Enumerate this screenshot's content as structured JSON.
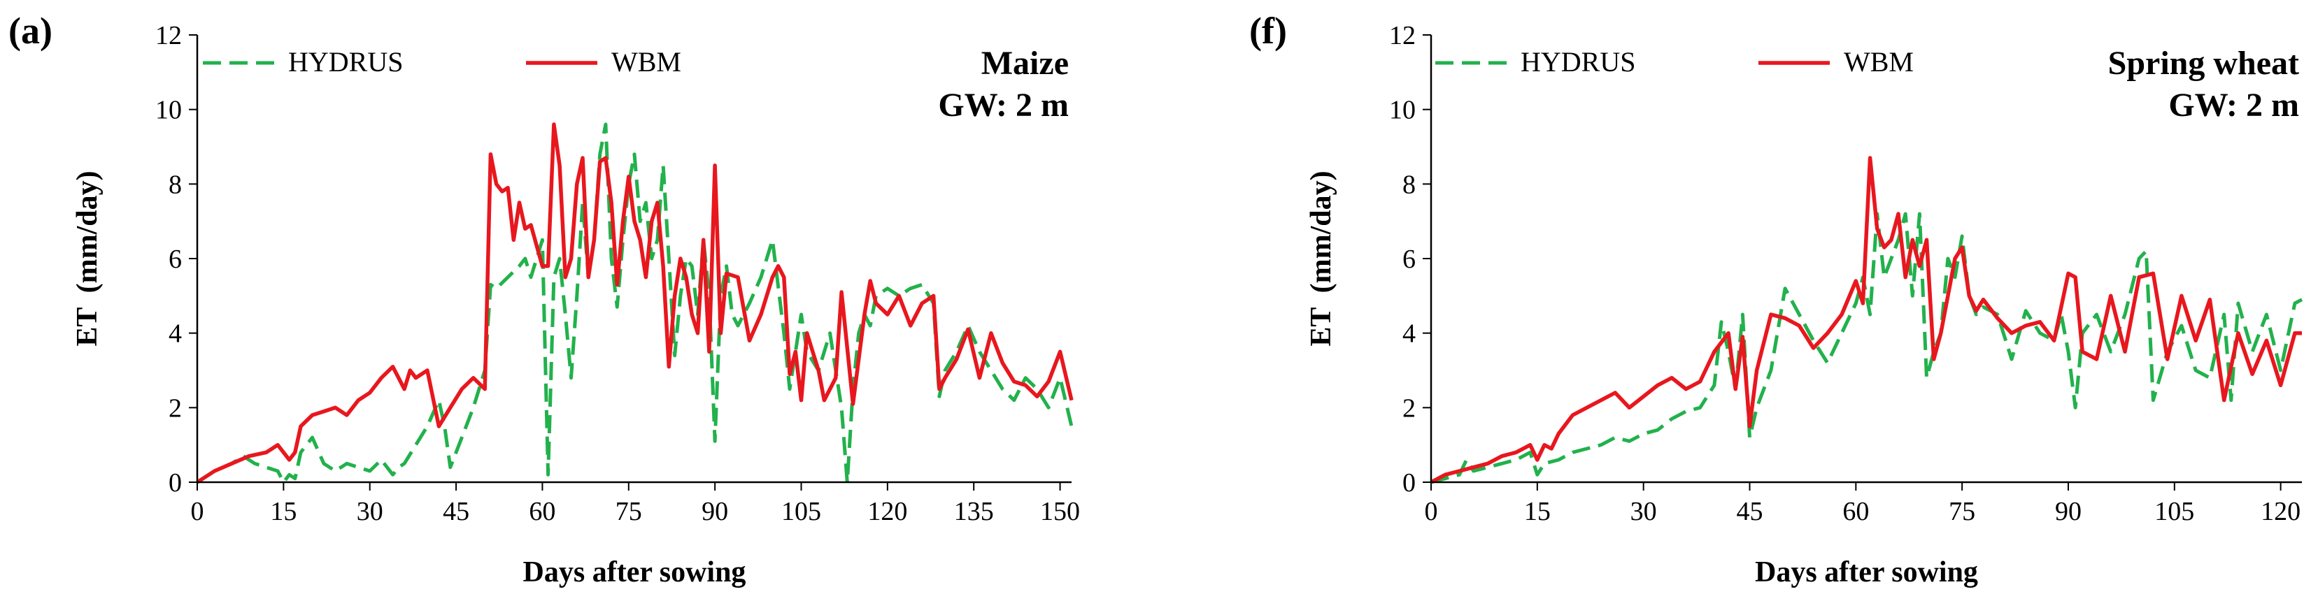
{
  "chart_data": [
    {
      "type": "line",
      "panel_label": "(a)",
      "crop": "Maize",
      "groundwater": "GW: 2 m",
      "xlabel": "Days after sowing",
      "ylabel": "ET  (mm/day)",
      "xlim": [
        0,
        152
      ],
      "ylim": [
        0,
        12
      ],
      "xticks": [
        0,
        15,
        30,
        45,
        60,
        75,
        90,
        105,
        120,
        135,
        150
      ],
      "yticks": [
        0,
        2,
        4,
        6,
        8,
        10,
        12
      ],
      "legend_position": "top-left",
      "series": [
        {
          "name": "HYDRUS",
          "color": "#22b14c",
          "dash": "dashed",
          "x": [
            0,
            3,
            6,
            8,
            10,
            12,
            14,
            15,
            16,
            17,
            18,
            20,
            22,
            24,
            26,
            28,
            30,
            32,
            34,
            35,
            36,
            38,
            40,
            42,
            43,
            44,
            46,
            48,
            50,
            51,
            52,
            54,
            56,
            57,
            58,
            59,
            60,
            61,
            62,
            63,
            64,
            65,
            66,
            67,
            68,
            69,
            70,
            71,
            72,
            73,
            74,
            75,
            76,
            77,
            78,
            79,
            80,
            81,
            82,
            83,
            84,
            85,
            86,
            87,
            88,
            89,
            90,
            91,
            92,
            93,
            94,
            96,
            98,
            100,
            102,
            103,
            104,
            105,
            106,
            108,
            110,
            112,
            113,
            114,
            115,
            116,
            117,
            118,
            120,
            122,
            124,
            126,
            128,
            129,
            130,
            132,
            134,
            136,
            138,
            140,
            142,
            144,
            146,
            148,
            150,
            152
          ],
          "y": [
            0,
            0.3,
            0.5,
            0.7,
            0.5,
            0.4,
            0.3,
            0,
            0.2,
            0.1,
            0.8,
            1.2,
            0.5,
            0.3,
            0.5,
            0.4,
            0.3,
            0.6,
            0.2,
            0.4,
            0.5,
            1.0,
            1.5,
            2.2,
            1.5,
            0.4,
            1.2,
            2.0,
            3.0,
            5.3,
            5.2,
            5.5,
            5.8,
            6.0,
            5.5,
            6.0,
            6.5,
            0.2,
            5.5,
            6.0,
            4.5,
            2.8,
            5.0,
            7.5,
            5.5,
            6.5,
            8.8,
            9.6,
            6.0,
            4.7,
            6.5,
            8.0,
            8.8,
            7.0,
            7.5,
            6.0,
            6.5,
            8.5,
            6.0,
            3.4,
            5.0,
            6.0,
            5.8,
            4.5,
            6.5,
            5.0,
            1.1,
            5.0,
            5.8,
            4.5,
            4.2,
            4.8,
            5.5,
            6.5,
            4.0,
            2.5,
            3.5,
            4.5,
            3.5,
            3.0,
            4.0,
            2.0,
            0,
            2.5,
            4.0,
            4.5,
            4.2,
            5.0,
            5.2,
            5.0,
            5.2,
            5.3,
            4.8,
            2.3,
            3.0,
            3.5,
            4.2,
            3.5,
            3.0,
            2.5,
            2.2,
            2.8,
            2.5,
            2.0,
            2.8,
            1.5
          ]
        },
        {
          "name": "WBM",
          "color": "#e8171e",
          "dash": "solid",
          "x": [
            0,
            3,
            6,
            9,
            12,
            14,
            16,
            17,
            18,
            20,
            22,
            24,
            26,
            28,
            30,
            32,
            34,
            36,
            37,
            38,
            40,
            42,
            44,
            46,
            48,
            50,
            51,
            52,
            53,
            54,
            55,
            56,
            57,
            58,
            60,
            61,
            62,
            63,
            64,
            65,
            66,
            67,
            68,
            69,
            70,
            71,
            72,
            73,
            74,
            75,
            76,
            77,
            78,
            79,
            80,
            81,
            82,
            83,
            84,
            85,
            86,
            87,
            88,
            89,
            90,
            91,
            92,
            94,
            96,
            98,
            100,
            101,
            102,
            103,
            104,
            105,
            106,
            107,
            108,
            109,
            110,
            111,
            112,
            114,
            116,
            117,
            118,
            120,
            122,
            124,
            126,
            128,
            129,
            130,
            132,
            134,
            136,
            138,
            140,
            142,
            144,
            146,
            148,
            150,
            152
          ],
          "y": [
            0,
            0.3,
            0.5,
            0.7,
            0.8,
            1.0,
            0.6,
            0.8,
            1.5,
            1.8,
            1.9,
            2.0,
            1.8,
            2.2,
            2.4,
            2.8,
            3.1,
            2.5,
            3.0,
            2.8,
            3.0,
            1.5,
            2.0,
            2.5,
            2.8,
            2.5,
            8.8,
            8.0,
            7.8,
            7.9,
            6.5,
            7.5,
            6.8,
            6.9,
            5.8,
            5.8,
            9.6,
            8.5,
            5.5,
            6.0,
            8.0,
            8.7,
            5.5,
            6.5,
            8.6,
            8.7,
            7.5,
            5.3,
            7.0,
            8.2,
            7.0,
            6.5,
            5.5,
            7.0,
            7.5,
            5.8,
            3.1,
            5.0,
            6.0,
            5.5,
            4.5,
            4.0,
            6.5,
            3.5,
            8.5,
            4.0,
            5.6,
            5.5,
            3.8,
            4.5,
            5.5,
            5.8,
            5.5,
            2.9,
            3.5,
            2.2,
            4.0,
            3.5,
            3.0,
            2.2,
            2.5,
            2.8,
            5.1,
            2.1,
            4.5,
            5.4,
            4.8,
            4.5,
            5.0,
            4.2,
            4.8,
            5.0,
            2.5,
            2.8,
            3.3,
            4.1,
            2.8,
            4.0,
            3.2,
            2.7,
            2.6,
            2.3,
            2.7,
            3.5,
            2.2
          ]
        }
      ]
    },
    {
      "type": "line",
      "panel_label": "(f)",
      "crop": "Spring wheat",
      "groundwater": "GW: 2 m",
      "xlabel": "Days after sowing",
      "ylabel": "ET  (mm/day)",
      "xlim": [
        0,
        123
      ],
      "ylim": [
        0,
        12
      ],
      "xticks": [
        0,
        15,
        30,
        45,
        60,
        75,
        90,
        105,
        120
      ],
      "yticks": [
        0,
        2,
        4,
        6,
        8,
        10,
        12
      ],
      "legend_position": "top-left",
      "series": [
        {
          "name": "HYDRUS",
          "color": "#22b14c",
          "dash": "dashed",
          "x": [
            0,
            2,
            4,
            5,
            6,
            8,
            10,
            12,
            14,
            15,
            16,
            18,
            20,
            22,
            24,
            26,
            28,
            30,
            32,
            34,
            36,
            38,
            40,
            41,
            42,
            43,
            44,
            45,
            46,
            48,
            50,
            52,
            54,
            56,
            58,
            60,
            61,
            62,
            63,
            64,
            65,
            66,
            67,
            68,
            69,
            70,
            71,
            72,
            73,
            74,
            75,
            76,
            77,
            78,
            80,
            82,
            84,
            86,
            88,
            89,
            90,
            91,
            92,
            94,
            96,
            98,
            100,
            101,
            102,
            104,
            106,
            108,
            110,
            112,
            113,
            114,
            116,
            118,
            120,
            122,
            123
          ],
          "y": [
            0,
            0.1,
            0.2,
            0.6,
            0.3,
            0.4,
            0.5,
            0.6,
            0.8,
            0.2,
            0.5,
            0.6,
            0.8,
            0.9,
            1.0,
            1.2,
            1.1,
            1.3,
            1.4,
            1.7,
            1.9,
            2.0,
            2.6,
            4.3,
            3.5,
            2.5,
            4.5,
            1.2,
            2.0,
            3.0,
            5.2,
            4.5,
            3.8,
            3.2,
            4.0,
            4.8,
            5.5,
            4.5,
            7.2,
            5.5,
            6.0,
            6.5,
            7.2,
            5.0,
            7.2,
            2.8,
            3.5,
            4.0,
            6.0,
            5.5,
            6.6,
            5.0,
            4.5,
            4.7,
            4.5,
            3.3,
            4.6,
            4.0,
            3.8,
            4.5,
            3.5,
            2.0,
            4.0,
            4.5,
            3.5,
            4.5,
            6.0,
            6.2,
            2.2,
            3.5,
            4.2,
            3.0,
            2.8,
            4.5,
            2.2,
            4.8,
            3.5,
            4.5,
            3.0,
            4.8,
            4.9
          ]
        },
        {
          "name": "WBM",
          "color": "#e8171e",
          "dash": "solid",
          "x": [
            0,
            2,
            4,
            6,
            8,
            10,
            12,
            14,
            15,
            16,
            17,
            18,
            20,
            22,
            24,
            26,
            28,
            30,
            32,
            34,
            36,
            38,
            40,
            42,
            43,
            44,
            45,
            46,
            48,
            50,
            52,
            54,
            56,
            58,
            60,
            61,
            62,
            63,
            64,
            65,
            66,
            67,
            68,
            69,
            70,
            71,
            72,
            74,
            75,
            76,
            77,
            78,
            80,
            82,
            84,
            86,
            88,
            90,
            91,
            92,
            94,
            96,
            98,
            100,
            102,
            104,
            106,
            108,
            110,
            112,
            114,
            116,
            118,
            120,
            122,
            123
          ],
          "y": [
            0,
            0.2,
            0.3,
            0.4,
            0.5,
            0.7,
            0.8,
            1.0,
            0.6,
            1.0,
            0.9,
            1.3,
            1.8,
            2.0,
            2.2,
            2.4,
            2.0,
            2.3,
            2.6,
            2.8,
            2.5,
            2.7,
            3.5,
            4.0,
            2.5,
            3.9,
            1.5,
            3.0,
            4.5,
            4.4,
            4.2,
            3.6,
            4.0,
            4.5,
            5.4,
            4.8,
            8.7,
            6.8,
            6.3,
            6.5,
            7.2,
            5.5,
            6.5,
            5.8,
            6.5,
            3.3,
            4.0,
            6.0,
            6.3,
            5.0,
            4.6,
            4.9,
            4.4,
            4.0,
            4.2,
            4.3,
            3.8,
            5.6,
            5.5,
            3.5,
            3.3,
            5.0,
            3.5,
            5.5,
            5.6,
            3.3,
            5.0,
            3.8,
            4.9,
            2.2,
            4.0,
            2.9,
            3.8,
            2.6,
            4.0,
            4.0
          ]
        }
      ]
    }
  ]
}
